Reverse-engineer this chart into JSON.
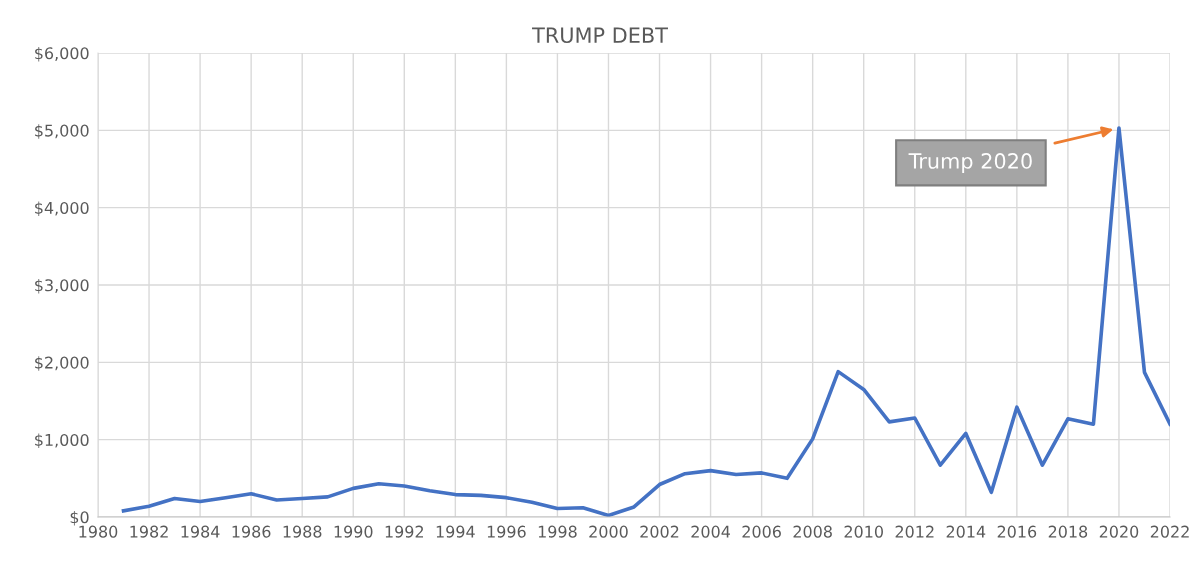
{
  "chart_data": {
    "type": "line",
    "title": "TRUMP DEBT",
    "x": [
      1981,
      1982,
      1983,
      1984,
      1985,
      1986,
      1987,
      1988,
      1989,
      1990,
      1991,
      1992,
      1993,
      1994,
      1995,
      1996,
      1997,
      1998,
      1999,
      2000,
      2001,
      2002,
      2003,
      2004,
      2005,
      2006,
      2007,
      2008,
      2009,
      2010,
      2011,
      2012,
      2013,
      2014,
      2015,
      2016,
      2017,
      2018,
      2019,
      2020,
      2021,
      2022
    ],
    "series": [
      {
        "color": "#4472c4",
        "values": [
          80,
          140,
          240,
          200,
          250,
          300,
          220,
          240,
          260,
          370,
          430,
          400,
          340,
          290,
          280,
          250,
          190,
          110,
          120,
          20,
          130,
          420,
          560,
          600,
          550,
          570,
          500,
          1010,
          1880,
          1650,
          1230,
          1280,
          670,
          1080,
          320,
          1420,
          670,
          1270,
          1200,
          5030,
          1870,
          1200
        ]
      }
    ],
    "xlim": [
      1980,
      2022
    ],
    "xticks": [
      1980,
      1982,
      1984,
      1986,
      1988,
      1990,
      1992,
      1994,
      1996,
      1998,
      2000,
      2002,
      2004,
      2006,
      2008,
      2010,
      2012,
      2014,
      2016,
      2018,
      2020,
      2022
    ],
    "ylim": [
      0,
      6000
    ],
    "yticks": [
      {
        "value": 0,
        "label": "$0"
      },
      {
        "value": 1000,
        "label": "$1,000"
      },
      {
        "value": 2000,
        "label": "$2,000"
      },
      {
        "value": 3000,
        "label": "$3,000"
      },
      {
        "value": 4000,
        "label": "$4,000"
      },
      {
        "value": 5000,
        "label": "$5,000"
      },
      {
        "value": 6000,
        "label": "$6,000"
      }
    ],
    "annotations": [
      {
        "text": "Trump 2020",
        "x": 2020,
        "y": 5030
      }
    ],
    "grid": true,
    "marker": "none",
    "line_style": "solid"
  }
}
